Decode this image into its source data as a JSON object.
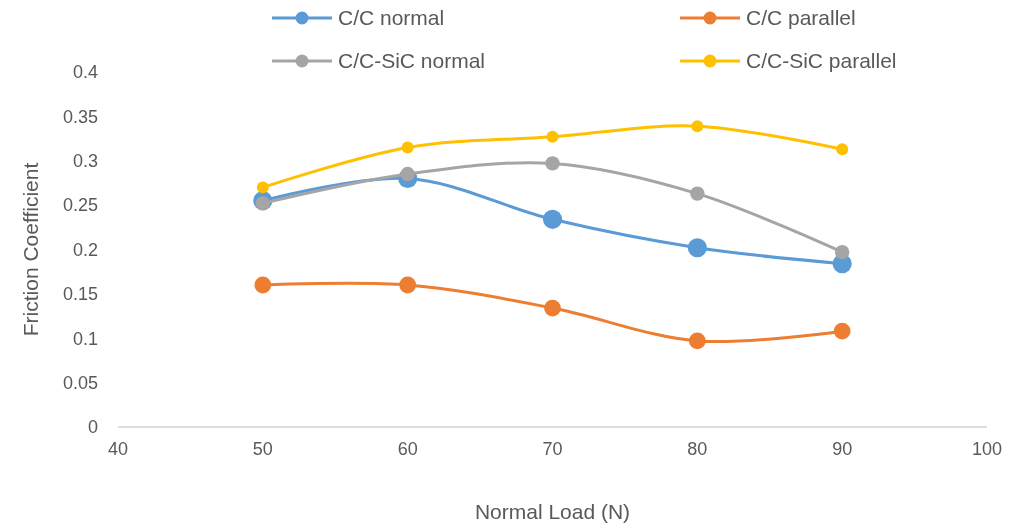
{
  "chart_data": {
    "type": "line",
    "xlabel": "Normal Load (N)",
    "ylabel": "Friction Coefficient",
    "x": [
      50,
      60,
      70,
      80,
      90
    ],
    "xlim": [
      40,
      100
    ],
    "xticks": [
      40,
      50,
      60,
      70,
      80,
      90,
      100
    ],
    "ylim": [
      0,
      0.4
    ],
    "yticks": [
      0,
      0.05,
      0.1,
      0.15,
      0.2,
      0.25,
      0.3,
      0.35,
      0.4
    ],
    "grid": false,
    "legend": "top",
    "marker": "circle",
    "line_style": "solid",
    "series": [
      {
        "name": "C/C normal",
        "color": "#5b9bd5",
        "values": [
          0.255,
          0.28,
          0.234,
          0.202,
          0.184
        ]
      },
      {
        "name": "C/C parallel",
        "color": "#ed7d31",
        "values": [
          0.16,
          0.16,
          0.134,
          0.097,
          0.108
        ]
      },
      {
        "name": "C/C-SiC normal",
        "color": "#a5a5a5",
        "values": [
          0.252,
          0.285,
          0.297,
          0.263,
          0.197
        ]
      },
      {
        "name": "C/C-SiC parallel",
        "color": "#ffc000",
        "values": [
          0.27,
          0.315,
          0.327,
          0.339,
          0.313
        ]
      }
    ]
  }
}
